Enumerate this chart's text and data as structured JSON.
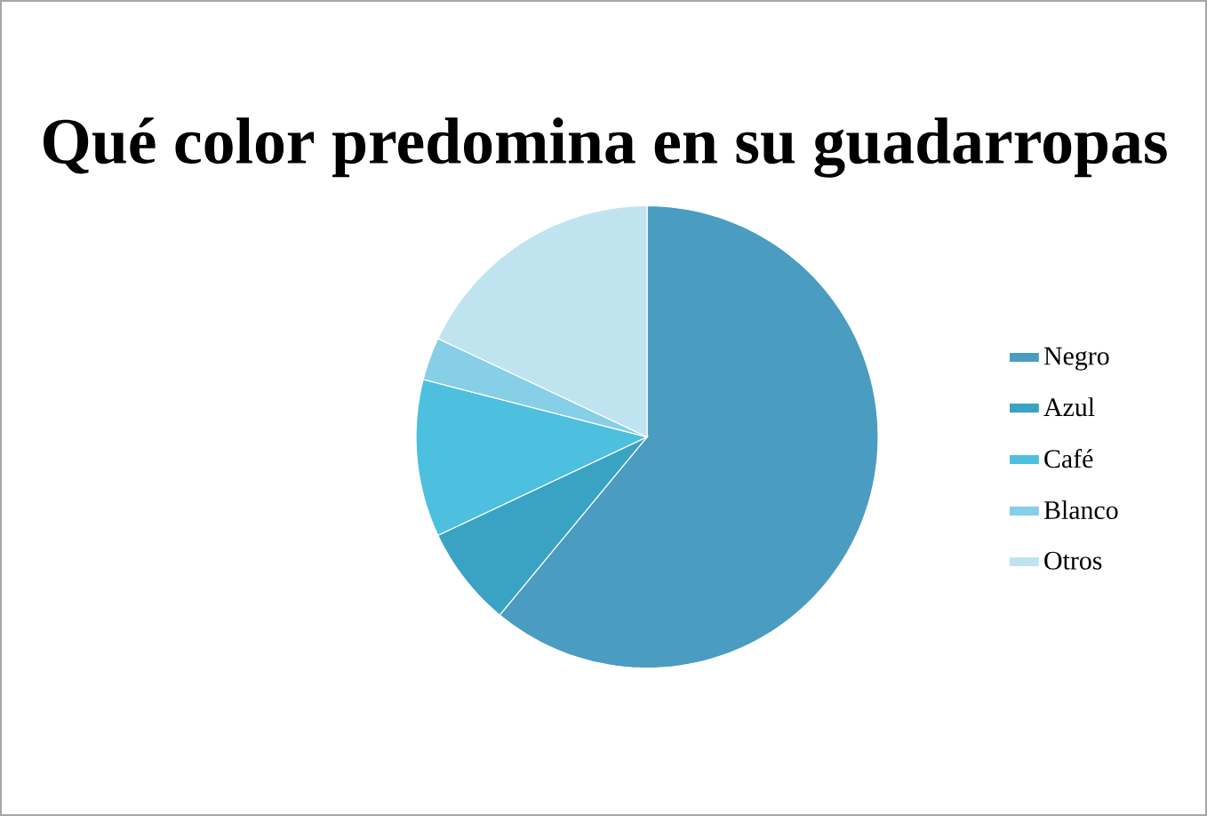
{
  "chart_data": {
    "type": "pie",
    "title": "Qué color predomina en su guadarropas",
    "categories": [
      "Negro",
      "Azul",
      "Café",
      "Blanco",
      "Otros"
    ],
    "values": [
      61,
      7,
      11,
      3,
      18
    ],
    "colors": [
      "#4a9cc0",
      "#3aa3c4",
      "#4cc0de",
      "#86cfe6",
      "#bfe4f0"
    ],
    "legend": "right"
  }
}
